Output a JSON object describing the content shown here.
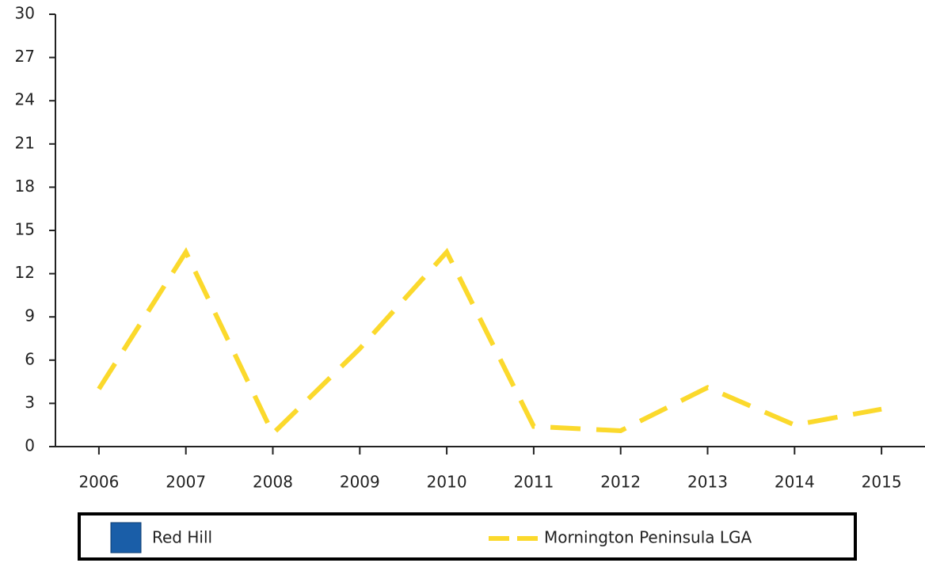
{
  "chart_data": {
    "type": "line",
    "categories": [
      "2006",
      "2007",
      "2008",
      "2009",
      "2010",
      "2011",
      "2012",
      "2013",
      "2014",
      "2015"
    ],
    "series": [
      {
        "name": "Red Hill",
        "type": "bar",
        "color": "#1a5ea8",
        "values": [
          null,
          null,
          null,
          null,
          null,
          null,
          null,
          null,
          null,
          null
        ]
      },
      {
        "name": "Mornington Peninsula LGA",
        "color": "#fbd92c",
        "values": [
          4.0,
          13.5,
          0.9,
          6.8,
          13.5,
          1.4,
          1.1,
          4.1,
          1.5,
          2.6
        ]
      }
    ],
    "ylim": [
      0,
      30
    ],
    "yticks": [
      0,
      3,
      6,
      9,
      12,
      15,
      18,
      21,
      24,
      27,
      30
    ],
    "grid": false
  }
}
